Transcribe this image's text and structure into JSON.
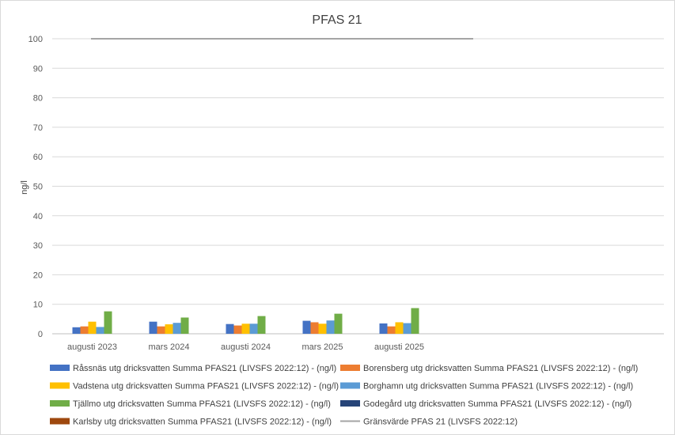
{
  "chart_data": {
    "type": "bar",
    "title": "PFAS 21",
    "xlabel": "",
    "ylabel": "ng/l",
    "ylim": [
      0,
      100
    ],
    "yticks": [
      0,
      10,
      20,
      30,
      40,
      50,
      60,
      70,
      80,
      90,
      100
    ],
    "grid": true,
    "legend_position": "bottom",
    "categories": [
      "augusti 2023",
      "mars 2024",
      "augusti 2024",
      "mars 2025",
      "augusti 2025"
    ],
    "series": [
      {
        "name": "Råssnäs utg dricksvatten Summa PFAS21 (LIVSFS 2022:12) - (ng/l)",
        "color": "#4472c4",
        "values": [
          2.2,
          4.1,
          3.3,
          4.4,
          3.5
        ]
      },
      {
        "name": "Borensberg utg dricksvatten Summa PFAS21 (LIVSFS 2022:12) - (ng/l)",
        "color": "#ed7d31",
        "values": [
          2.5,
          2.5,
          2.8,
          3.9,
          2.5
        ]
      },
      {
        "name": "Vadstena utg dricksvatten Summa PFAS21 (LIVSFS 2022:12) - (ng/l)",
        "color": "#ffc000",
        "values": [
          4.1,
          3.2,
          3.4,
          3.4,
          3.9
        ]
      },
      {
        "name": "Borghamn utg dricksvatten Summa PFAS21 (LIVSFS 2022:12) - (ng/l)",
        "color": "#5b9bd5",
        "values": [
          2.3,
          3.7,
          3.4,
          4.5,
          3.6
        ]
      },
      {
        "name": "Tjällmo utg dricksvatten Summa PFAS21 (LIVSFS 2022:12) - (ng/l)",
        "color": "#70ad47",
        "values": [
          7.6,
          5.5,
          6.0,
          6.8,
          8.7
        ]
      },
      {
        "name": "Godegård utg dricksvatten Summa PFAS21 (LIVSFS 2022:12) - (ng/l)",
        "color": "#264478",
        "values": [
          null,
          null,
          null,
          null,
          null
        ]
      },
      {
        "name": "Karlsby utg dricksvatten Summa PFAS21 (LIVSFS 2022:12) - (ng/l)",
        "color": "#9e480e",
        "values": [
          null,
          null,
          null,
          null,
          null
        ]
      }
    ],
    "reference_line": {
      "name": "Gränsvärde PFAS 21 (LIVSFS 2022:12)",
      "color": "#a5a5a5",
      "value": 100
    }
  }
}
